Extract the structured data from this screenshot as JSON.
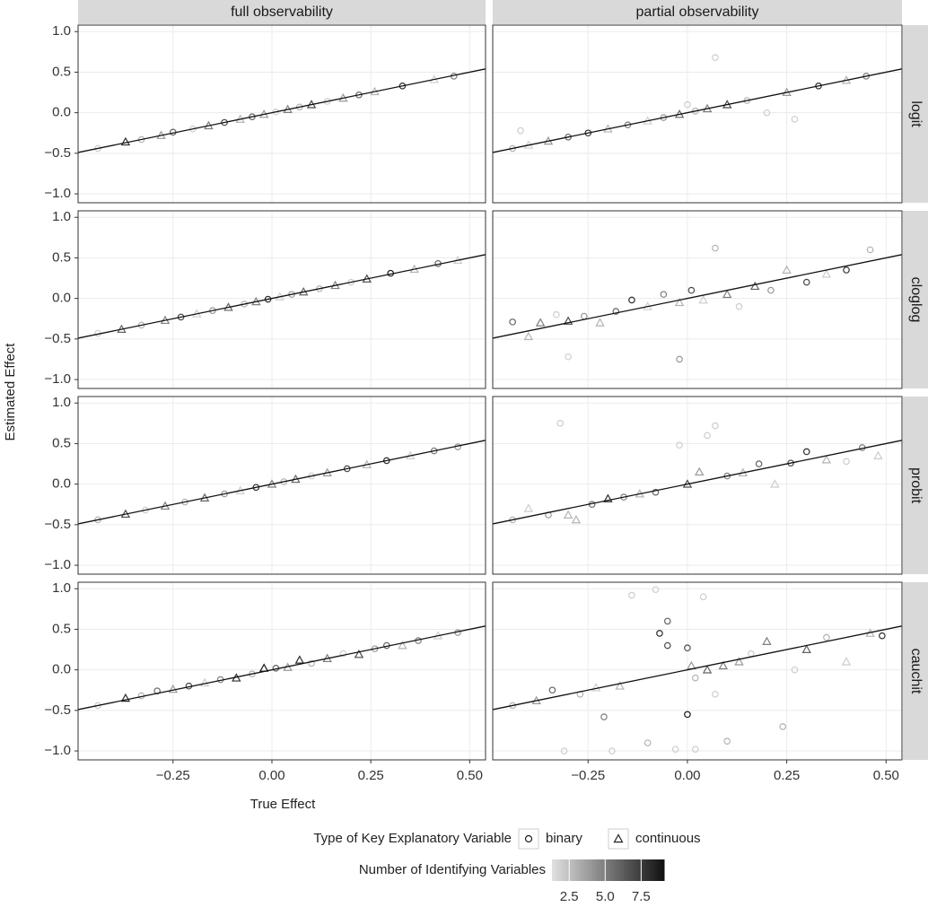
{
  "chart_data": {
    "type": "scatter",
    "xlabel": "True Effect",
    "ylabel": "Estimated Effect",
    "columns": [
      "full observability",
      "partial observability"
    ],
    "rows": [
      "logit",
      "cloglog",
      "probit",
      "cauchit"
    ],
    "xlim": [
      -0.49,
      0.54
    ],
    "ylim": [
      -1.11,
      1.08
    ],
    "xticks": [
      {
        "value": -0.25,
        "label": "−0.25"
      },
      {
        "value": 0,
        "label": "0.00"
      },
      0.25,
      {
        "value": 0.5,
        "label": "0.50"
      }
    ],
    "yticks": [
      {
        "value": -1,
        "label": "−1.0"
      },
      {
        "value": -0.5,
        "label": "−0.5"
      },
      {
        "value": 0,
        "label": "0.0"
      },
      0.5,
      {
        "value": 1,
        "label": "1.0"
      }
    ],
    "grid": true,
    "reference_line": {
      "slope": 1,
      "intercept": 0,
      "color": "#111111"
    },
    "shape_legend": {
      "title": "Type of Key Explanatory Variable",
      "names": [
        "binary",
        "continuous"
      ]
    },
    "color_legend": {
      "title": "Number of Identifying Variables",
      "lim": [
        1.3,
        9.1
      ],
      "ticks": [
        2.5,
        {
          "value": 5,
          "label": "5.0"
        },
        7.5
      ],
      "colors": [
        "#e0e0e0",
        "#111111"
      ]
    },
    "panels": [
      {
        "x": [
          -0.44,
          -0.37,
          -0.33,
          -0.28,
          -0.25,
          -0.2,
          -0.16,
          -0.12,
          -0.08,
          -0.05,
          -0.02,
          0.01,
          0.04,
          0.07,
          0.1,
          0.14,
          0.18,
          0.22,
          0.26,
          0.33,
          0.41,
          0.46
        ],
        "y": [
          -0.44,
          -0.36,
          -0.33,
          -0.28,
          -0.24,
          -0.2,
          -0.16,
          -0.12,
          -0.08,
          -0.05,
          -0.02,
          0.01,
          0.04,
          0.07,
          0.1,
          0.14,
          0.18,
          0.22,
          0.26,
          0.33,
          0.41,
          0.45
        ],
        "kind": [
          0,
          1,
          0,
          1,
          0,
          0,
          1,
          0,
          1,
          0,
          1,
          0,
          1,
          0,
          1,
          0,
          1,
          0,
          1,
          0,
          1,
          0
        ],
        "n": [
          2,
          8,
          3,
          4,
          6,
          2,
          5,
          7,
          3,
          6,
          4,
          2,
          5,
          3,
          7,
          2,
          4,
          6,
          3,
          8,
          2,
          5
        ]
      },
      {
        "x": [
          -0.44,
          -0.4,
          -0.35,
          -0.3,
          -0.25,
          -0.2,
          -0.15,
          -0.1,
          -0.06,
          -0.02,
          0.0,
          0.02,
          0.05,
          0.07,
          0.1,
          0.15,
          0.2,
          0.25,
          0.27,
          0.33,
          0.4,
          0.45,
          -0.42
        ],
        "y": [
          -0.44,
          -0.4,
          -0.35,
          -0.3,
          -0.25,
          -0.2,
          -0.15,
          -0.1,
          -0.06,
          -0.02,
          0.1,
          0.02,
          0.05,
          0.68,
          0.1,
          0.15,
          0.0,
          0.25,
          -0.08,
          0.33,
          0.4,
          0.45,
          -0.22
        ],
        "kind": [
          0,
          1,
          1,
          0,
          0,
          1,
          0,
          1,
          0,
          1,
          0,
          0,
          1,
          0,
          1,
          0,
          0,
          1,
          0,
          0,
          1,
          0,
          0
        ],
        "n": [
          3,
          2,
          4,
          6,
          8,
          3,
          5,
          2,
          4,
          6,
          2,
          3,
          5,
          2,
          7,
          3,
          2,
          4,
          2,
          8,
          3,
          5,
          2
        ]
      },
      {
        "x": [
          -0.44,
          -0.38,
          -0.33,
          -0.27,
          -0.23,
          -0.19,
          -0.15,
          -0.11,
          -0.07,
          -0.04,
          -0.01,
          0.02,
          0.05,
          0.08,
          0.12,
          0.16,
          0.2,
          0.24,
          0.3,
          0.36,
          0.42,
          0.47
        ],
        "y": [
          -0.43,
          -0.38,
          -0.33,
          -0.27,
          -0.23,
          -0.19,
          -0.15,
          -0.11,
          -0.07,
          -0.04,
          -0.01,
          0.02,
          0.05,
          0.08,
          0.12,
          0.16,
          0.2,
          0.24,
          0.31,
          0.36,
          0.43,
          0.47
        ],
        "kind": [
          0,
          1,
          0,
          1,
          0,
          1,
          0,
          1,
          0,
          1,
          0,
          1,
          0,
          1,
          0,
          1,
          0,
          1,
          0,
          1,
          0,
          1
        ],
        "n": [
          2,
          6,
          3,
          5,
          7,
          2,
          4,
          6,
          3,
          5,
          8,
          2,
          4,
          6,
          3,
          5,
          2,
          7,
          9,
          3,
          6,
          2
        ]
      },
      {
        "x": [
          -0.44,
          -0.4,
          -0.37,
          -0.33,
          -0.3,
          -0.26,
          -0.22,
          -0.18,
          -0.14,
          -0.1,
          -0.06,
          -0.02,
          -0.02,
          0.01,
          0.04,
          0.07,
          0.1,
          0.13,
          0.17,
          0.21,
          0.25,
          0.3,
          0.35,
          0.4,
          0.46,
          -0.3
        ],
        "y": [
          -0.29,
          -0.47,
          -0.3,
          -0.2,
          -0.28,
          -0.22,
          -0.3,
          -0.16,
          -0.02,
          -0.1,
          0.05,
          -0.05,
          -0.75,
          0.1,
          -0.02,
          0.62,
          0.05,
          -0.1,
          0.15,
          0.1,
          0.35,
          0.2,
          0.3,
          0.35,
          0.6,
          -0.72
        ],
        "kind": [
          0,
          1,
          1,
          0,
          1,
          0,
          1,
          0,
          0,
          1,
          0,
          1,
          0,
          0,
          1,
          0,
          1,
          0,
          1,
          0,
          1,
          0,
          1,
          0,
          0,
          0
        ],
        "n": [
          6,
          3,
          5,
          2,
          7,
          4,
          3,
          6,
          8,
          2,
          5,
          3,
          4,
          7,
          2,
          3,
          5,
          2,
          6,
          4,
          3,
          7,
          2,
          8,
          3,
          2
        ]
      },
      {
        "x": [
          -0.44,
          -0.37,
          -0.32,
          -0.27,
          -0.22,
          -0.17,
          -0.12,
          -0.08,
          -0.04,
          0.0,
          0.03,
          0.06,
          0.1,
          0.14,
          0.19,
          0.24,
          0.29,
          0.35,
          0.41,
          0.47
        ],
        "y": [
          -0.44,
          -0.37,
          -0.32,
          -0.27,
          -0.22,
          -0.17,
          -0.12,
          -0.08,
          -0.04,
          0.0,
          0.03,
          0.06,
          0.1,
          0.14,
          0.19,
          0.24,
          0.29,
          0.35,
          0.41,
          0.46
        ],
        "kind": [
          0,
          1,
          0,
          1,
          0,
          1,
          0,
          1,
          0,
          1,
          0,
          1,
          0,
          1,
          0,
          1,
          0,
          1,
          0,
          0
        ],
        "n": [
          3,
          7,
          2,
          5,
          3,
          6,
          4,
          2,
          8,
          5,
          3,
          6,
          2,
          4,
          7,
          3,
          8,
          2,
          5,
          4
        ]
      },
      {
        "x": [
          -0.44,
          -0.4,
          -0.35,
          -0.32,
          -0.28,
          -0.24,
          -0.2,
          -0.16,
          -0.12,
          -0.08,
          -0.02,
          0.0,
          0.03,
          0.05,
          0.07,
          0.1,
          0.14,
          0.18,
          0.22,
          0.26,
          0.3,
          0.35,
          0.4,
          0.44,
          0.48,
          -0.3
        ],
        "y": [
          -0.44,
          -0.3,
          -0.38,
          0.75,
          -0.44,
          -0.25,
          -0.18,
          -0.16,
          -0.12,
          -0.1,
          0.48,
          0.0,
          0.15,
          0.6,
          0.72,
          0.1,
          0.14,
          0.25,
          0.0,
          0.26,
          0.4,
          0.3,
          0.28,
          0.45,
          0.35,
          -0.38
        ],
        "kind": [
          0,
          1,
          0,
          0,
          1,
          0,
          1,
          0,
          1,
          0,
          0,
          1,
          1,
          0,
          0,
          0,
          1,
          0,
          1,
          0,
          0,
          1,
          0,
          0,
          1,
          1
        ],
        "n": [
          3,
          2,
          4,
          2,
          3,
          6,
          8,
          5,
          3,
          6,
          2,
          7,
          4,
          2,
          2,
          5,
          3,
          6,
          2,
          7,
          8,
          3,
          2,
          5,
          2,
          3
        ]
      },
      {
        "x": [
          -0.44,
          -0.37,
          -0.33,
          -0.29,
          -0.25,
          -0.21,
          -0.17,
          -0.13,
          -0.09,
          -0.05,
          -0.02,
          0.01,
          0.04,
          0.07,
          0.1,
          0.14,
          0.18,
          0.22,
          0.26,
          0.29,
          0.33,
          0.37,
          0.42,
          0.47
        ],
        "y": [
          -0.44,
          -0.35,
          -0.32,
          -0.26,
          -0.24,
          -0.2,
          -0.16,
          -0.12,
          -0.1,
          -0.05,
          0.02,
          0.02,
          0.03,
          0.12,
          0.08,
          0.14,
          0.2,
          0.19,
          0.26,
          0.3,
          0.3,
          0.36,
          0.42,
          0.46
        ],
        "kind": [
          0,
          1,
          0,
          0,
          1,
          0,
          1,
          0,
          1,
          0,
          1,
          0,
          1,
          1,
          0,
          1,
          0,
          1,
          0,
          0,
          1,
          0,
          1,
          0
        ],
        "n": [
          2,
          8,
          3,
          6,
          4,
          7,
          2,
          5,
          8,
          3,
          9,
          6,
          4,
          8,
          3,
          5,
          2,
          7,
          4,
          6,
          3,
          5,
          2,
          4
        ]
      },
      {
        "x": [
          -0.44,
          -0.38,
          -0.34,
          -0.31,
          -0.27,
          -0.23,
          -0.21,
          -0.17,
          -0.14,
          -0.1,
          -0.08,
          -0.07,
          -0.05,
          -0.03,
          0.0,
          0.0,
          0.01,
          0.02,
          0.04,
          0.05,
          0.07,
          0.09,
          0.1,
          0.13,
          0.16,
          0.2,
          0.24,
          0.27,
          0.3,
          0.35,
          0.4,
          0.46,
          0.49,
          -0.19,
          -0.05,
          0.02
        ],
        "y": [
          -0.44,
          -0.38,
          -0.25,
          -1.0,
          -0.3,
          -0.22,
          -0.58,
          -0.2,
          0.92,
          -0.9,
          0.99,
          0.45,
          0.6,
          -0.98,
          0.27,
          -0.55,
          0.05,
          -0.1,
          0.9,
          0.0,
          -0.3,
          0.05,
          -0.88,
          0.1,
          0.2,
          0.35,
          -0.7,
          0.0,
          0.25,
          0.4,
          0.1,
          0.45,
          0.42,
          -1.0,
          0.3,
          -0.98
        ],
        "kind": [
          0,
          1,
          0,
          0,
          0,
          1,
          0,
          1,
          0,
          0,
          0,
          0,
          0,
          0,
          0,
          0,
          1,
          0,
          0,
          1,
          0,
          1,
          0,
          1,
          0,
          1,
          0,
          0,
          1,
          0,
          1,
          1,
          0,
          0,
          0,
          0
        ],
        "n": [
          3,
          4,
          6,
          2,
          3,
          2,
          5,
          3,
          2,
          3,
          2,
          8,
          6,
          2,
          7,
          9,
          4,
          3,
          2,
          6,
          2,
          5,
          3,
          4,
          2,
          5,
          3,
          2,
          6,
          3,
          2,
          3,
          8,
          2,
          7,
          2
        ]
      }
    ]
  }
}
